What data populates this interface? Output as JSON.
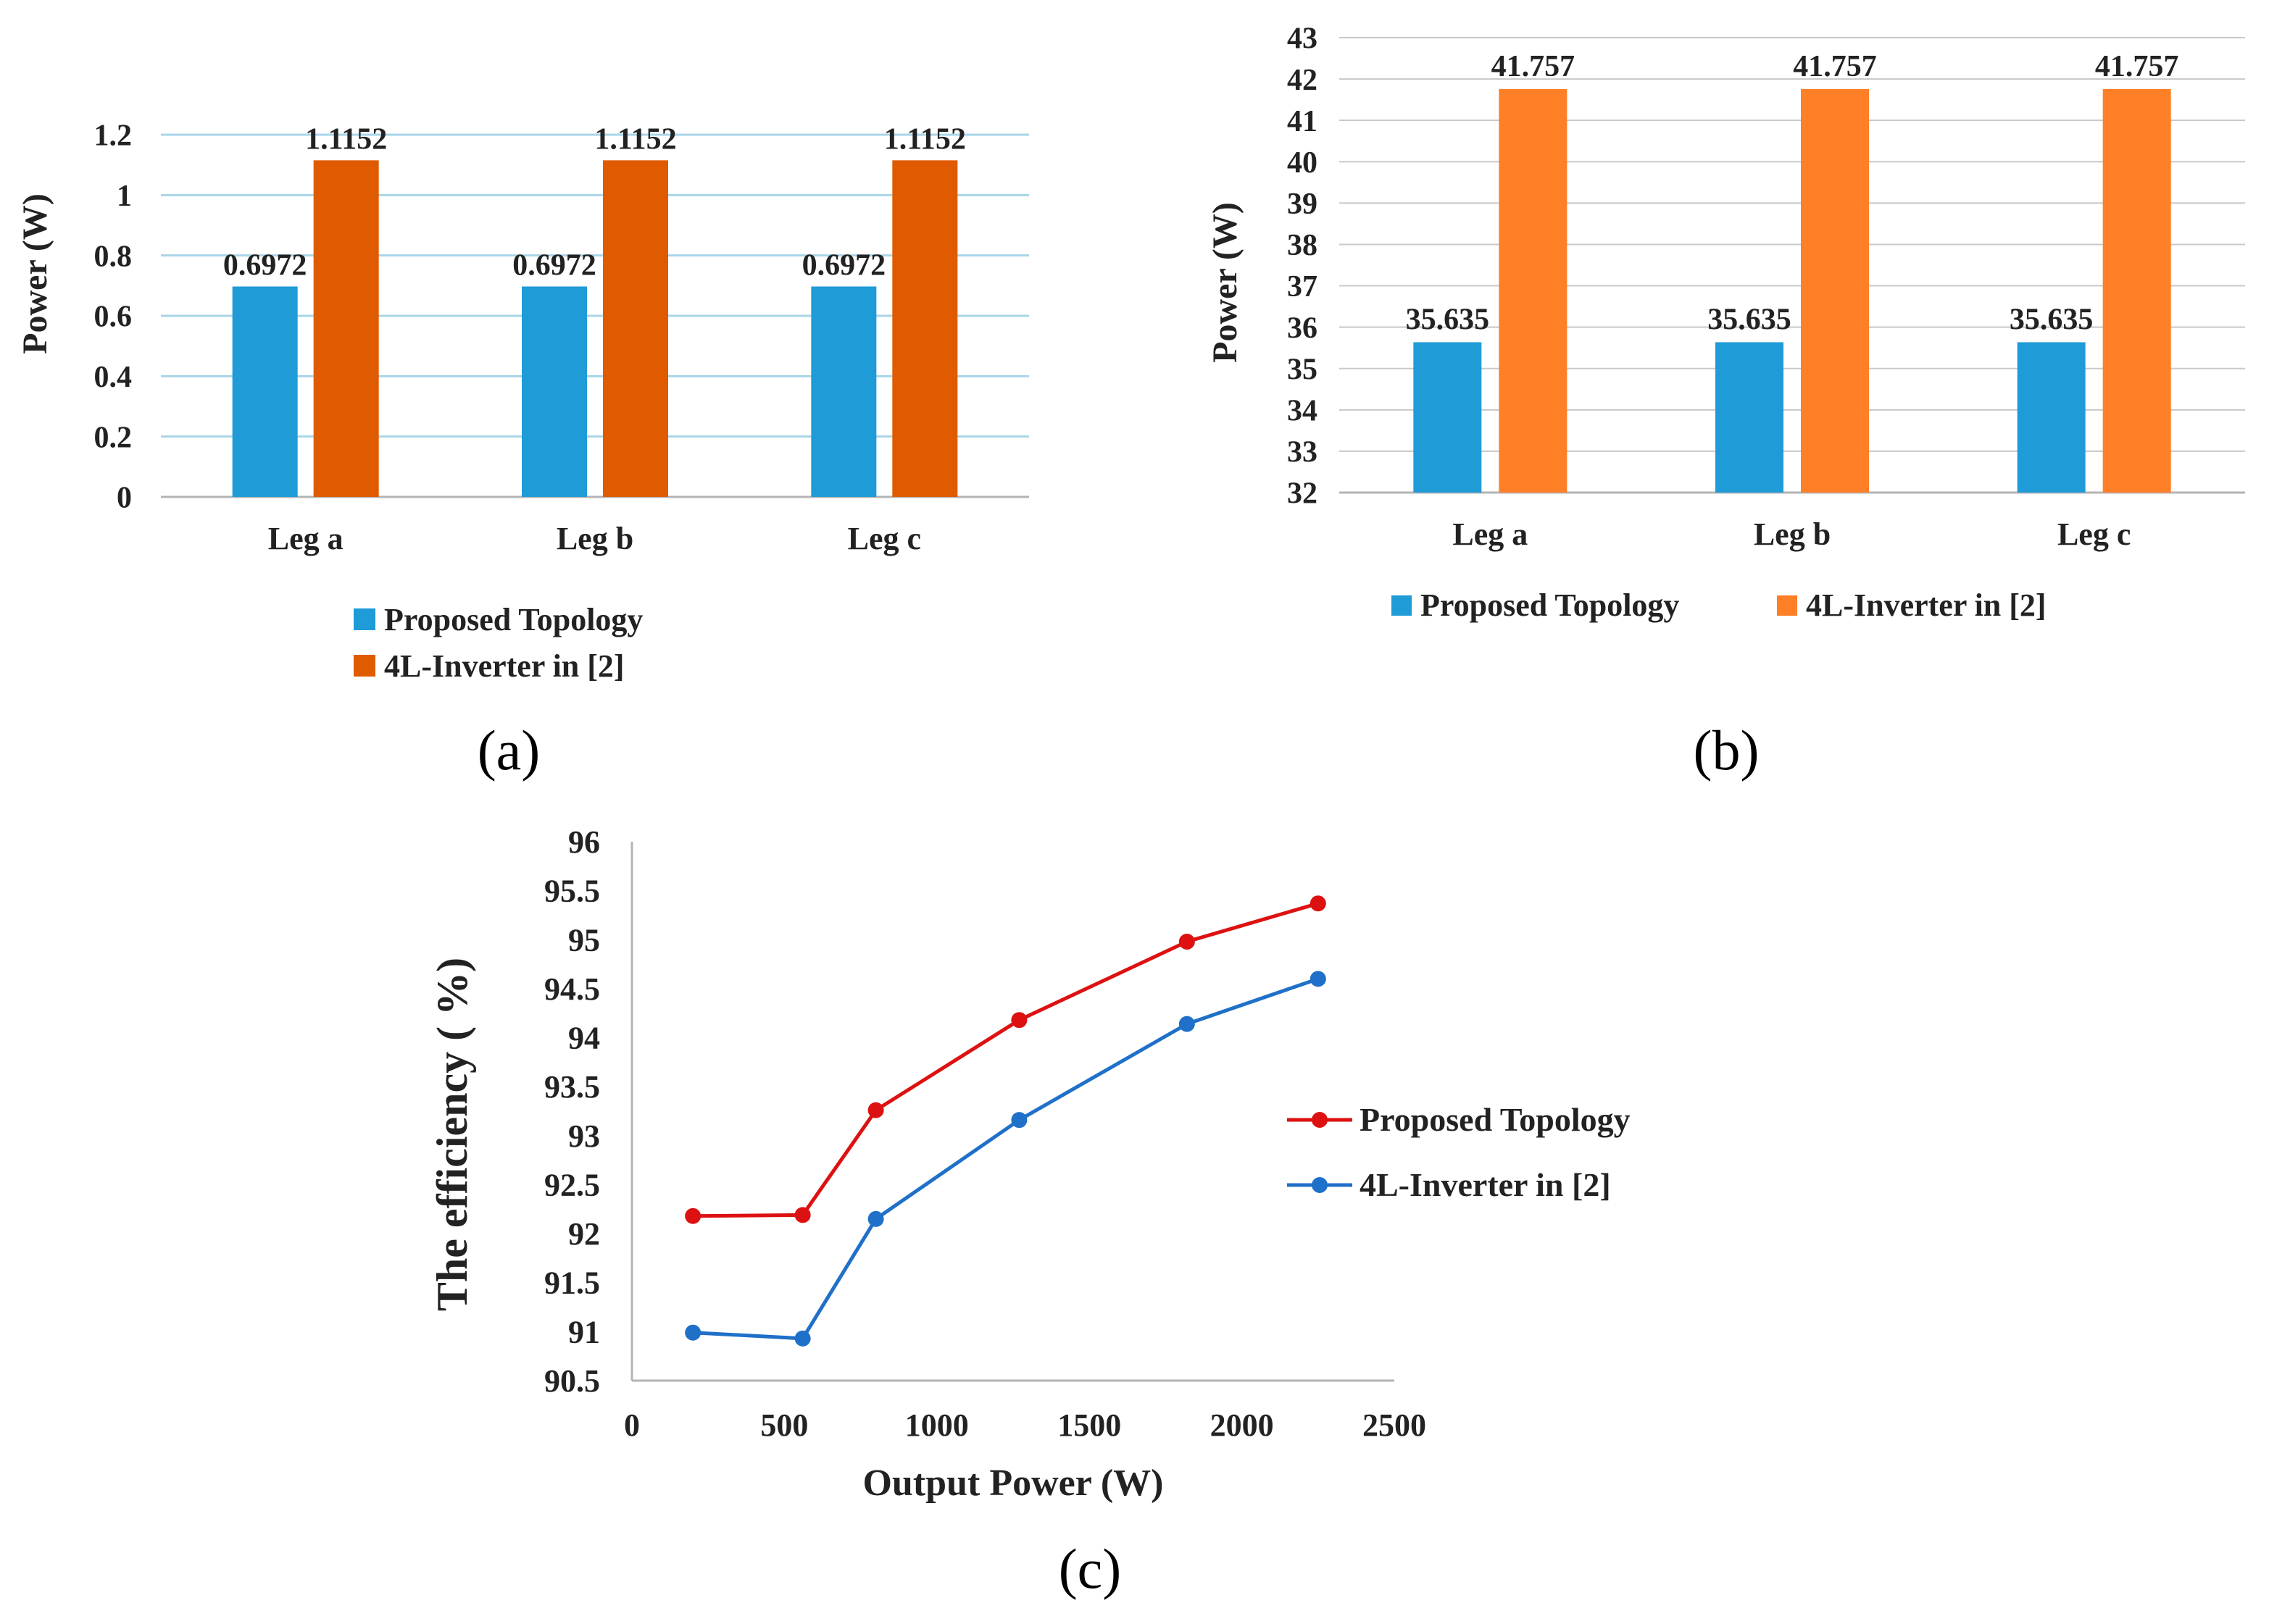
{
  "colors": {
    "a_series1": "#1F9BD7",
    "a_series2": "#E05A00",
    "b_series1": "#1F9BD7",
    "b_series2": "#FF7F27",
    "c_series1": "#DD1111",
    "c_series2": "#1F70C8",
    "grid_a": "#A9D5E8",
    "grid_b": "#C8C8C8",
    "axis": "#B4B4B4"
  },
  "panels": {
    "a": "(a)",
    "b": "(b)",
    "c": "(c)"
  },
  "chart_data": [
    {
      "id": "a",
      "type": "bar",
      "categories": [
        "Leg a",
        "Leg b",
        "Leg c"
      ],
      "series": [
        {
          "name": "Proposed Topology",
          "values": [
            0.6972,
            0.6972,
            0.6972
          ],
          "labels": [
            "0.6972",
            "0.6972",
            "0.6972"
          ]
        },
        {
          "name": "4L-Inverter in [2]",
          "values": [
            1.1152,
            1.1152,
            1.1152
          ],
          "labels": [
            "1.1152",
            "1.1152",
            "1.1152"
          ]
        }
      ],
      "ylabel": "Power (W)",
      "ylim": [
        0,
        1.2
      ],
      "yticks": [
        "0",
        "0.2",
        "0.4",
        "0.6",
        "0.8",
        "1",
        "1.2"
      ],
      "grid": true,
      "legend": "bottom"
    },
    {
      "id": "b",
      "type": "bar",
      "categories": [
        "Leg a",
        "Leg b",
        "Leg c"
      ],
      "series": [
        {
          "name": "Proposed Topology",
          "values": [
            35.635,
            35.635,
            35.635
          ],
          "labels": [
            "35.635",
            "35.635",
            "35.635"
          ]
        },
        {
          "name": "4L-Inverter in [2]",
          "values": [
            41.757,
            41.757,
            41.757
          ],
          "labels": [
            "41.757",
            "41.757",
            "41.757"
          ]
        }
      ],
      "ylabel": "Power (W)",
      "ylim": [
        32,
        43
      ],
      "yticks": [
        "32",
        "33",
        "34",
        "35",
        "36",
        "37",
        "38",
        "39",
        "40",
        "41",
        "42",
        "43"
      ],
      "grid": true,
      "legend": "bottom"
    },
    {
      "id": "c",
      "type": "line",
      "series": [
        {
          "name": "Proposed Topology",
          "x": [
            200,
            560,
            800,
            1270,
            1820,
            2250
          ],
          "y": [
            92.18,
            92.19,
            93.26,
            94.18,
            94.98,
            95.37
          ]
        },
        {
          "name": "4L-Inverter in [2]",
          "x": [
            200,
            560,
            800,
            1270,
            1820,
            2250
          ],
          "y": [
            90.99,
            90.93,
            92.15,
            93.16,
            94.14,
            94.6
          ]
        }
      ],
      "xlabel": "Output Power (W)",
      "ylabel": "The efficiency ( %)",
      "xlim": [
        0,
        2500
      ],
      "ylim": [
        90.5,
        96
      ],
      "xticks": [
        "0",
        "500",
        "1000",
        "1500",
        "2000",
        "2500"
      ],
      "yticks": [
        "90.5",
        "91",
        "91.5",
        "92",
        "92.5",
        "93",
        "93.5",
        "94",
        "94.5",
        "95",
        "95.5",
        "96"
      ],
      "grid": false,
      "legend": "right"
    }
  ]
}
